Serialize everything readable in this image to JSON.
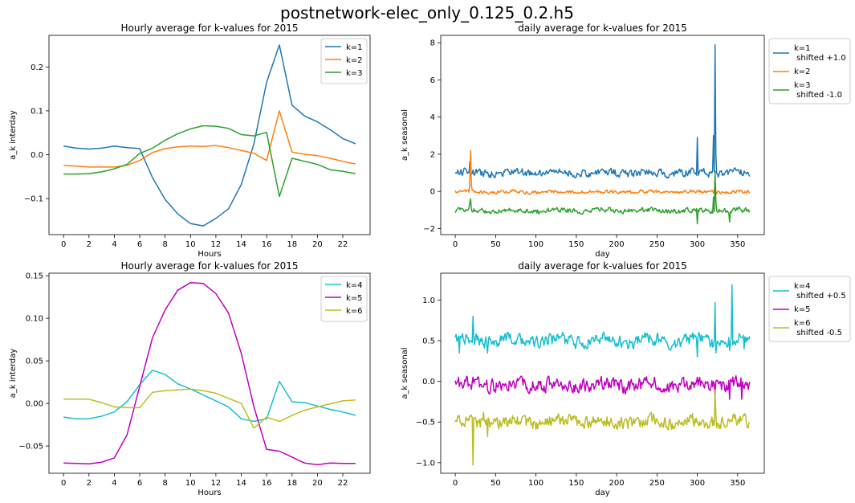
{
  "figure": {
    "title": "postnetwork-elec_only_0.125_0.2.h5"
  },
  "chart_data": [
    {
      "type": "line",
      "title": "Hourly average for k-values for 2015",
      "xlabel": "Hours",
      "ylabel": "a_k interday",
      "xlim": [
        -1.15,
        24.15
      ],
      "ylim": [
        -0.182,
        0.272
      ],
      "xticks": [
        0,
        2,
        4,
        6,
        8,
        10,
        12,
        14,
        16,
        18,
        20,
        22
      ],
      "yticks": [
        -0.1,
        0.0,
        0.1,
        0.2
      ],
      "legend_position": "top-right",
      "x": [
        0,
        1,
        2,
        3,
        4,
        5,
        6,
        7,
        8,
        9,
        10,
        11,
        12,
        13,
        14,
        15,
        16,
        17,
        18,
        19,
        20,
        21,
        22,
        23
      ],
      "series": [
        {
          "name": "k=1",
          "color": "#1f77b4",
          "values": [
            0.02,
            0.015,
            0.013,
            0.015,
            0.02,
            0.016,
            0.014,
            -0.052,
            -0.102,
            -0.135,
            -0.157,
            -0.162,
            -0.145,
            -0.123,
            -0.068,
            0.025,
            0.165,
            0.25,
            0.113,
            0.088,
            0.075,
            0.057,
            0.037,
            0.025
          ]
        },
        {
          "name": "k=2",
          "color": "#ff7f0e",
          "values": [
            -0.024,
            -0.026,
            -0.028,
            -0.028,
            -0.028,
            -0.024,
            -0.013,
            0.005,
            0.014,
            0.018,
            0.02,
            0.019,
            0.021,
            0.016,
            0.01,
            0.003,
            -0.013,
            0.1,
            0.006,
            0.001,
            -0.002,
            -0.008,
            -0.015,
            -0.021
          ]
        },
        {
          "name": "k=3",
          "color": "#2ca02c",
          "values": [
            -0.044,
            -0.044,
            -0.043,
            -0.039,
            -0.032,
            -0.022,
            0.003,
            0.015,
            0.033,
            0.048,
            0.059,
            0.066,
            0.065,
            0.06,
            0.046,
            0.043,
            0.051,
            -0.095,
            -0.008,
            -0.015,
            -0.022,
            -0.034,
            -0.038,
            -0.043
          ]
        }
      ]
    },
    {
      "type": "line",
      "title": "daily average for k-values for 2015",
      "xlabel": "day",
      "ylabel": "a_k seasonal",
      "xlim": [
        -18,
        383
      ],
      "ylim": [
        -2.33,
        8.4
      ],
      "xticks": [
        0,
        50,
        100,
        150,
        200,
        250,
        300,
        350
      ],
      "yticks": [
        -2,
        0,
        2,
        4,
        6,
        8
      ],
      "legend_position": "outside-right",
      "series": [
        {
          "name": "k=1",
          "legend_lines": [
            "k=1",
            " shifted +1.0"
          ],
          "color": "#1f77b4",
          "base": 1.0,
          "amp": 0.18,
          "spikes": [
            [
              18,
              1.6
            ],
            [
              300,
              2.9
            ],
            [
              320,
              3.0
            ],
            [
              322,
              7.9
            ],
            [
              323,
              2.0
            ]
          ]
        },
        {
          "name": "k=2",
          "legend_lines": [
            "k=2"
          ],
          "color": "#ff7f0e",
          "base": -0.03,
          "amp": 0.08,
          "spikes": [
            [
              18,
              0.6
            ],
            [
              19,
              2.2
            ],
            [
              20,
              0.3
            ],
            [
              322,
              0.6
            ]
          ]
        },
        {
          "name": "k=3",
          "legend_lines": [
            "k=3",
            " shifted -1.0"
          ],
          "color": "#2ca02c",
          "base": -1.03,
          "amp": 0.12,
          "spikes": [
            [
              18,
              -0.6
            ],
            [
              19,
              -0.4
            ],
            [
              300,
              -1.75
            ],
            [
              320,
              -0.3
            ],
            [
              322,
              1.1
            ],
            [
              323,
              -0.5
            ],
            [
              340,
              -1.65
            ]
          ]
        }
      ]
    },
    {
      "type": "line",
      "title": "Hourly average for k-values for 2015",
      "xlabel": "Hours",
      "ylabel": "a_k interday",
      "xlim": [
        -1.15,
        24.15
      ],
      "ylim": [
        -0.082,
        0.153
      ],
      "xticks": [
        0,
        2,
        4,
        6,
        8,
        10,
        12,
        14,
        16,
        18,
        20,
        22
      ],
      "yticks": [
        -0.05,
        0.0,
        0.05,
        0.1,
        0.15
      ],
      "legend_position": "top-right",
      "x": [
        0,
        1,
        2,
        3,
        4,
        5,
        6,
        7,
        8,
        9,
        10,
        11,
        12,
        13,
        14,
        15,
        16,
        17,
        18,
        19,
        20,
        21,
        22,
        23
      ],
      "series": [
        {
          "name": "k=4",
          "color": "#17becf",
          "values": [
            -0.016,
            -0.018,
            -0.018,
            -0.015,
            -0.01,
            0.002,
            0.022,
            0.039,
            0.034,
            0.023,
            0.017,
            0.01,
            0.003,
            -0.004,
            -0.018,
            -0.021,
            -0.018,
            0.026,
            0.002,
            0.001,
            -0.003,
            -0.007,
            -0.01,
            -0.014
          ]
        },
        {
          "name": "k=5",
          "color": "#c000c0",
          "values": [
            -0.07,
            -0.0705,
            -0.071,
            -0.069,
            -0.064,
            -0.037,
            0.02,
            0.077,
            0.11,
            0.133,
            0.142,
            0.141,
            0.129,
            0.106,
            0.059,
            -0.004,
            -0.054,
            -0.056,
            -0.063,
            -0.07,
            -0.072,
            -0.07,
            -0.0705,
            -0.0705
          ]
        },
        {
          "name": "k=6",
          "color": "#bcbd22",
          "values": [
            0.005,
            0.005,
            0.005,
            0.001,
            -0.004,
            -0.005,
            -0.005,
            0.013,
            0.015,
            0.016,
            0.017,
            0.015,
            0.012,
            0.006,
            0.0,
            -0.029,
            -0.016,
            -0.021,
            -0.014,
            -0.008,
            -0.004,
            -0.0005,
            0.003,
            0.004
          ]
        }
      ]
    },
    {
      "type": "line",
      "title": "daily average for k-values for 2015",
      "xlabel": "day",
      "ylabel": "a_k seasonal",
      "xlim": [
        -18,
        383
      ],
      "ylim": [
        -1.13,
        1.33
      ],
      "xticks": [
        0,
        50,
        100,
        150,
        200,
        250,
        300,
        350
      ],
      "yticks": [
        -1.0,
        -0.5,
        0.0,
        0.5,
        1.0
      ],
      "legend_position": "outside-right",
      "series": [
        {
          "name": "k=4",
          "legend_lines": [
            "k=4",
            " shifted +0.5"
          ],
          "color": "#17becf",
          "base": 0.5,
          "amp": 0.07,
          "spikes": [
            [
              5,
              0.35
            ],
            [
              22,
              0.8
            ],
            [
              40,
              0.35
            ],
            [
              300,
              0.3
            ],
            [
              322,
              0.97
            ],
            [
              323,
              0.35
            ],
            [
              340,
              0.38
            ],
            [
              343,
              1.19
            ],
            [
              344,
              0.45
            ],
            [
              358,
              0.4
            ]
          ]
        },
        {
          "name": "k=5",
          "legend_lines": [
            "k=5"
          ],
          "color": "#c000c0",
          "base": -0.04,
          "amp": 0.075,
          "spikes": [
            [
              322,
              -0.18
            ],
            [
              340,
              -0.22
            ],
            [
              355,
              -0.22
            ]
          ]
        },
        {
          "name": "k=6",
          "legend_lines": [
            "k=6",
            " shifted -0.5"
          ],
          "color": "#bcbd22",
          "base": -0.5,
          "amp": 0.07,
          "spikes": [
            [
              22,
              -1.03
            ],
            [
              40,
              -0.68
            ],
            [
              35,
              -0.38
            ],
            [
              322,
              -0.1
            ],
            [
              323,
              -0.4
            ]
          ]
        }
      ]
    }
  ]
}
